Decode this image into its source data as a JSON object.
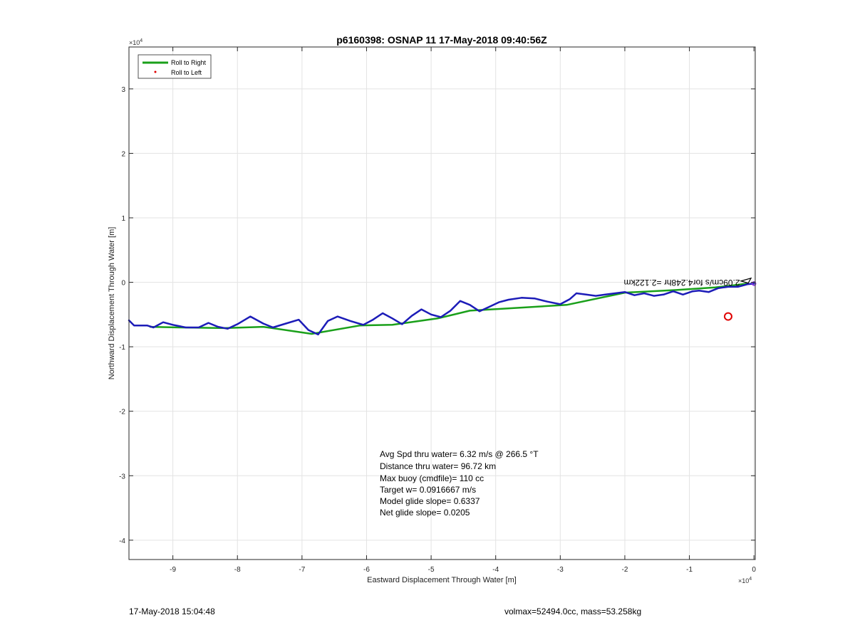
{
  "chart_data": {
    "type": "line",
    "title": "p6160398: OSNAP 11 17-May-2018 09:40:56Z",
    "xlabel": "Eastward Displacement Through Water [m]",
    "ylabel": "Northward Displacement Through Water [m]",
    "x_exponent_label": "×10^4",
    "y_exponent_label": "×10^4",
    "xlim": [
      -9.68,
      0.02
    ],
    "ylim": [
      -4.3,
      3.65
    ],
    "xticks": [
      -9,
      -8,
      -7,
      -6,
      -5,
      -4,
      -3,
      -2,
      -1,
      0
    ],
    "xtick_labels": [
      "-9",
      "-8",
      "-7",
      "-6",
      "-5",
      "-4",
      "-3",
      "-2",
      "-1",
      "0"
    ],
    "yticks": [
      -4,
      -3,
      -2,
      -1,
      0,
      1,
      2,
      3
    ],
    "ytick_labels": [
      "-4",
      "-3",
      "-2",
      "-1",
      "0",
      "1",
      "2",
      "3"
    ],
    "grid": true,
    "legend_position": "top-left",
    "legend": [
      {
        "label": "Roll to Right",
        "color": "#1aa01a",
        "style": "line"
      },
      {
        "label": "Roll to Left",
        "color": "#e00000",
        "style": "dot"
      }
    ],
    "series": [
      {
        "name": "Roll to Right",
        "color": "#1aa01a",
        "x": [
          -9.35,
          -8.9,
          -8.2,
          -7.6,
          -6.85,
          -6.1,
          -5.6,
          -4.9,
          -4.4,
          -3.9,
          -2.9,
          -2.0,
          -1.2,
          -0.6,
          -0.1
        ],
        "y": [
          -0.69,
          -0.7,
          -0.71,
          -0.69,
          -0.8,
          -0.67,
          -0.66,
          -0.56,
          -0.44,
          -0.41,
          -0.35,
          -0.16,
          -0.12,
          -0.08,
          -0.02
        ]
      },
      {
        "color": "#1c1cb8",
        "x": [
          -9.68,
          -9.6,
          -9.4,
          -9.3,
          -9.15,
          -9.0,
          -8.8,
          -8.6,
          -8.45,
          -8.3,
          -8.15,
          -8.0,
          -7.8,
          -7.6,
          -7.45,
          -7.25,
          -7.05,
          -6.9,
          -6.75,
          -6.6,
          -6.45,
          -6.25,
          -6.05,
          -5.9,
          -5.75,
          -5.6,
          -5.45,
          -5.3,
          -5.15,
          -5.0,
          -4.85,
          -4.7,
          -4.55,
          -4.4,
          -4.25,
          -4.1,
          -3.95,
          -3.8,
          -3.6,
          -3.4,
          -3.2,
          -3.0,
          -2.85,
          -2.75,
          -2.6,
          -2.45,
          -2.3,
          -2.15,
          -2.0,
          -1.85,
          -1.7,
          -1.55,
          -1.4,
          -1.25,
          -1.1,
          -0.95,
          -0.85,
          -0.7,
          -0.55,
          -0.4,
          -0.25,
          -0.1,
          0.0
        ],
        "y": [
          -0.59,
          -0.67,
          -0.67,
          -0.7,
          -0.62,
          -0.66,
          -0.7,
          -0.7,
          -0.63,
          -0.69,
          -0.72,
          -0.65,
          -0.53,
          -0.64,
          -0.7,
          -0.64,
          -0.58,
          -0.74,
          -0.81,
          -0.6,
          -0.53,
          -0.6,
          -0.66,
          -0.58,
          -0.48,
          -0.56,
          -0.65,
          -0.52,
          -0.42,
          -0.5,
          -0.54,
          -0.44,
          -0.29,
          -0.35,
          -0.45,
          -0.38,
          -0.31,
          -0.27,
          -0.24,
          -0.25,
          -0.3,
          -0.34,
          -0.26,
          -0.17,
          -0.19,
          -0.21,
          -0.19,
          -0.17,
          -0.15,
          -0.2,
          -0.17,
          -0.21,
          -0.19,
          -0.14,
          -0.19,
          -0.14,
          -0.13,
          -0.15,
          -0.09,
          -0.07,
          -0.07,
          -0.03,
          -0.02
        ]
      }
    ],
    "marker_circle": {
      "x": -0.4,
      "y": -0.53,
      "color": "#e00000"
    },
    "endpoint_marker": {
      "x": 0.0,
      "y": -0.02,
      "color": "#8a2be2"
    },
    "flipped_label": "2.09cm/s for4.248hr =2.122km",
    "annotation_lines": [
      "Avg Spd thru water=  6.32 m/s @ 266.5 °T",
      "Distance thru water= 96.72 km",
      "Max buoy (cmdfile)= 110 cc",
      "Target w= 0.0916667 m/s",
      "Model glide slope= 0.6337",
      "Net glide slope= 0.0205"
    ]
  },
  "footer": {
    "left": "17-May-2018 15:04:48",
    "right": "volmax=52494.0cc, mass=53.258kg"
  }
}
